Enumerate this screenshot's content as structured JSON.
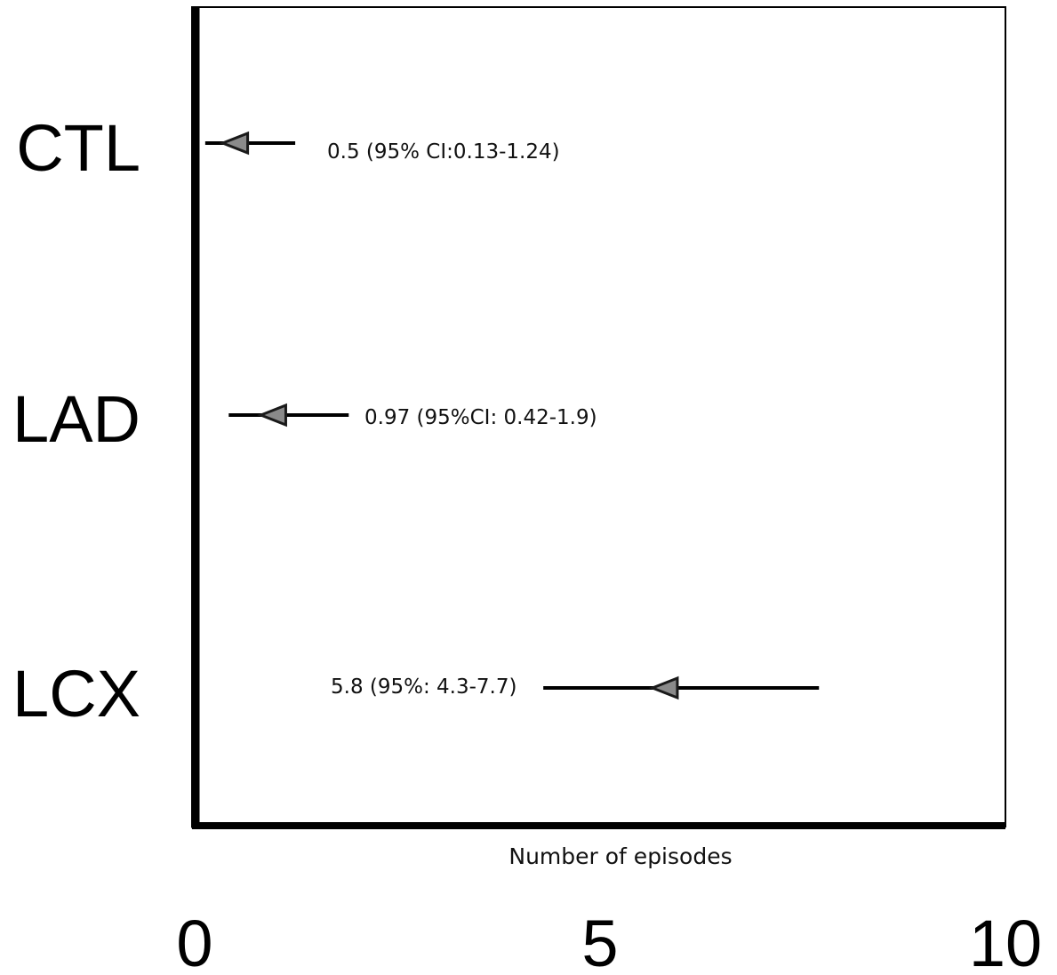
{
  "chart_data": {
    "type": "forest",
    "xlabel": "Number of episodes",
    "xlim": [
      0,
      10
    ],
    "x_ticks": [
      "0",
      "5",
      "10"
    ],
    "grid": false,
    "marker": "left-pointing triangle",
    "colors": {
      "line": "#000000",
      "marker_fill": "#8a8a8a",
      "marker_edge": "#1a1a1a"
    },
    "rows": [
      {
        "category": "CTL",
        "estimate": 0.5,
        "lower": 0.13,
        "upper": 1.24,
        "annotation": "0.5 (95% CI:0.13-1.24)"
      },
      {
        "category": "LAD",
        "estimate": 0.97,
        "lower": 0.42,
        "upper": 1.9,
        "annotation": "0.97 (95%CI: 0.42-1.9)"
      },
      {
        "category": "LCX",
        "estimate": 5.8,
        "lower": 4.3,
        "upper": 7.7,
        "annotation": "5.8 (95%: 4.3-7.7)"
      }
    ]
  }
}
